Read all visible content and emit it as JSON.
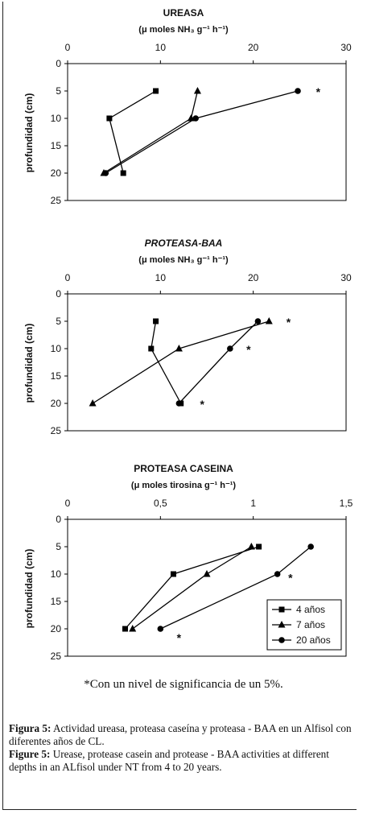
{
  "chart_data": [
    {
      "type": "line",
      "title": "UREASA",
      "unit_label": "(μ moles NH₃ g⁻¹ h⁻¹)",
      "ylabel": "profundidad (cm)",
      "xlim": [
        0,
        30
      ],
      "ylim": [
        0,
        25
      ],
      "x_ticks": [
        0,
        10,
        20,
        30
      ],
      "y_ticks": [
        0,
        5,
        10,
        15,
        20,
        25
      ],
      "x_tick_labels": [
        "0",
        "10",
        "20",
        "30"
      ],
      "y_tick_labels": [
        "0",
        "5",
        "10",
        "15",
        "20",
        "25"
      ],
      "y_inverted": true,
      "series": [
        {
          "name": "4 años",
          "marker": "square",
          "x": [
            9.5,
            4.5,
            6.0
          ],
          "y": [
            5,
            10,
            20
          ]
        },
        {
          "name": "7 años",
          "marker": "triangle",
          "x": [
            14.0,
            13.3,
            3.9
          ],
          "y": [
            5,
            10,
            20
          ]
        },
        {
          "name": "20 años",
          "marker": "circle",
          "x": [
            24.8,
            13.8,
            4.1
          ],
          "y": [
            5,
            10,
            20
          ]
        }
      ],
      "annotations": [
        {
          "text": "*",
          "x": 27,
          "y": 5
        }
      ]
    },
    {
      "type": "line",
      "title": "PROTEASA-BAA",
      "unit_label": "(μ moles NH₃ g⁻¹ h⁻¹)",
      "ylabel": "profundidad (cm)",
      "xlim": [
        0,
        30
      ],
      "ylim": [
        0,
        25
      ],
      "x_ticks": [
        0,
        10,
        20,
        30
      ],
      "y_ticks": [
        0,
        5,
        10,
        15,
        20,
        25
      ],
      "x_tick_labels": [
        "0",
        "10",
        "20",
        "30"
      ],
      "y_tick_labels": [
        "0",
        "5",
        "10",
        "15",
        "20",
        "25"
      ],
      "y_inverted": true,
      "series": [
        {
          "name": "4 años",
          "marker": "square",
          "x": [
            9.5,
            9.0,
            12.2
          ],
          "y": [
            5,
            10,
            20
          ]
        },
        {
          "name": "7 años",
          "marker": "triangle",
          "x": [
            21.7,
            12.0,
            2.7
          ],
          "y": [
            5,
            10,
            20
          ]
        },
        {
          "name": "20 años",
          "marker": "circle",
          "x": [
            20.5,
            17.5,
            12.0
          ],
          "y": [
            5,
            10,
            20
          ]
        }
      ],
      "annotations": [
        {
          "text": "*",
          "x": 23.8,
          "y": 5
        },
        {
          "text": "*",
          "x": 19.5,
          "y": 10
        },
        {
          "text": "*",
          "x": 14.5,
          "y": 20
        }
      ]
    },
    {
      "type": "line",
      "title": "PROTEASA CASEINA",
      "unit_label": "(μ moles tirosina g⁻¹ h⁻¹)",
      "ylabel": "profundidad (cm)",
      "xlim": [
        0,
        1.5
      ],
      "ylim": [
        0,
        25
      ],
      "x_ticks": [
        0,
        0.5,
        1.0,
        1.5
      ],
      "y_ticks": [
        0,
        5,
        10,
        15,
        20,
        25
      ],
      "x_tick_labels": [
        "0",
        "0,5",
        "1",
        "1,5"
      ],
      "y_tick_labels": [
        "0",
        "5",
        "10",
        "15",
        "20",
        "25"
      ],
      "y_inverted": true,
      "legend_position": "bottom-right",
      "series": [
        {
          "name": "4 años",
          "marker": "square",
          "x": [
            1.03,
            0.57,
            0.31
          ],
          "y": [
            5,
            10,
            20
          ]
        },
        {
          "name": "7 años",
          "marker": "triangle",
          "x": [
            0.99,
            0.75,
            0.35
          ],
          "y": [
            5,
            10,
            20
          ]
        },
        {
          "name": "20 años",
          "marker": "circle",
          "x": [
            1.31,
            1.13,
            0.5
          ],
          "y": [
            5,
            10,
            20
          ]
        }
      ],
      "annotations": [
        {
          "text": "*",
          "x": 1.2,
          "y": 10.5
        },
        {
          "text": "*",
          "x": 0.6,
          "y": 21.5
        }
      ]
    }
  ],
  "footnote": "*Con un nivel de significancia de un 5%.",
  "caption": {
    "es_label": "Figura 5:",
    "es_text": " Actividad ureasa, proteasa caseína y proteasa - BAA en un Alfisol con diferentes años de CL.",
    "en_label": "Figure 5:",
    "en_text": " Urease, protease casein and protease - BAA activities at different depths in an ALfisol under NT from 4 to 20 years."
  }
}
